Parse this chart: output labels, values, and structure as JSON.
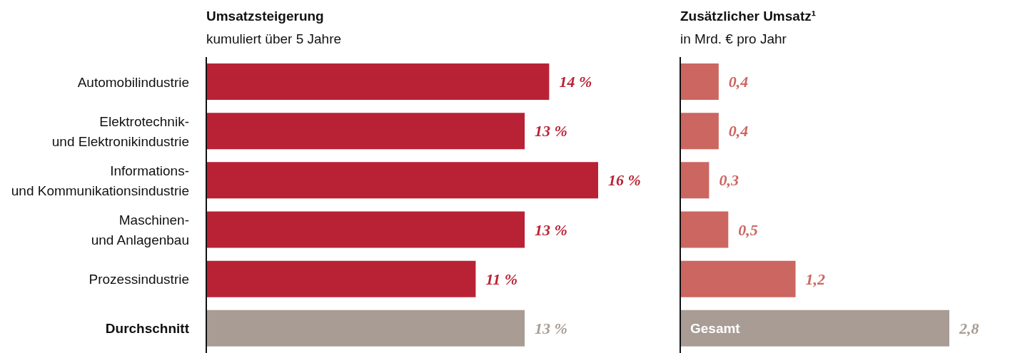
{
  "chart_data": [
    {
      "type": "bar",
      "orientation": "horizontal",
      "title": "Umsatzsteigerung",
      "subtitle": "kumuliert über 5 Jahre",
      "categories": [
        "Automobilindustrie",
        "Elektrotechnik- und Elektronikindustrie",
        "Informations- und Kommunikationsindustrie",
        "Maschinen- und Anlagenbau",
        "Prozessindustrie",
        "Durchschnitt"
      ],
      "values": [
        14,
        13,
        16,
        13,
        11,
        13
      ],
      "colors": [
        "#b92235",
        "#b92235",
        "#b92235",
        "#b92235",
        "#b92235",
        "#a89c94"
      ],
      "value_labels": [
        "14 %",
        "13 %",
        "16 %",
        "13 %",
        "11 %",
        "13 %"
      ]
    },
    {
      "type": "bar",
      "orientation": "horizontal",
      "title": "Zusätzlicher Umsatz¹",
      "subtitle": "in Mrd. € pro Jahr",
      "categories": [
        null,
        null,
        null,
        null,
        null,
        "Gesamt"
      ],
      "values": [
        0.4,
        0.4,
        0.3,
        0.5,
        1.2,
        2.8
      ],
      "colors": [
        "#cc6660",
        "#cc6660",
        "#cc6660",
        "#cc6660",
        "#cc6660",
        "#a89c94"
      ],
      "value_labels": [
        "0,4",
        "0,4",
        "0,3",
        "0,5",
        "1,2",
        "2,8"
      ]
    }
  ]
}
